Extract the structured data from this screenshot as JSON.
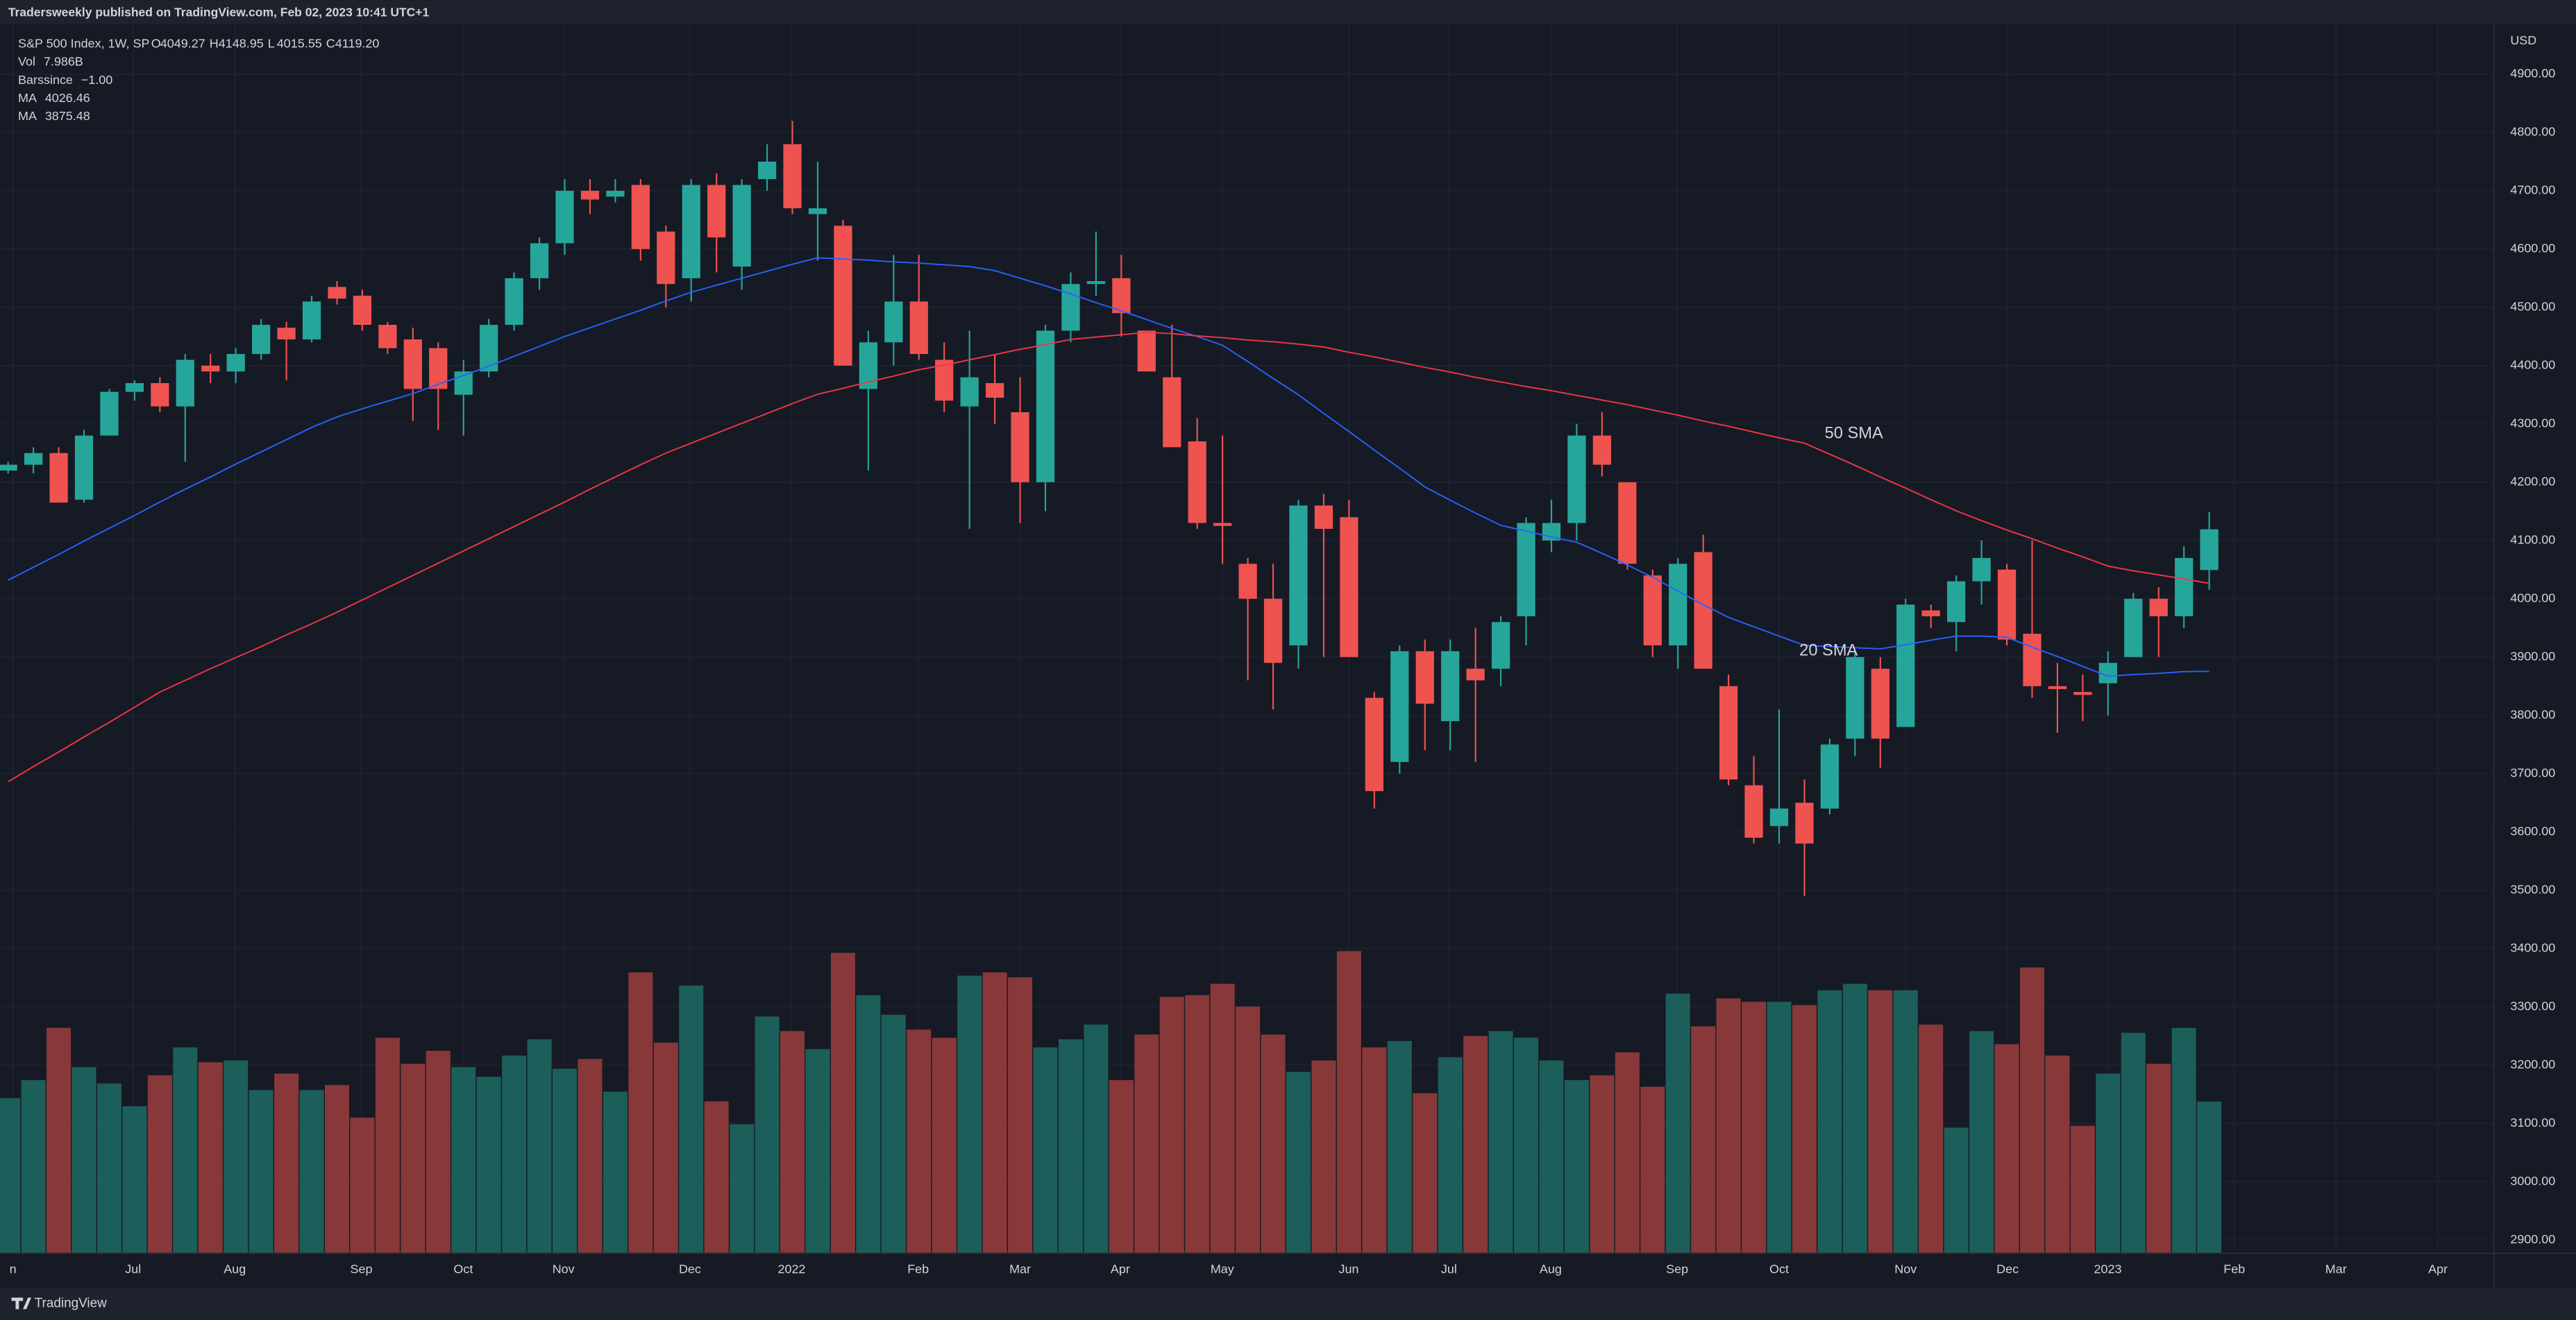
{
  "header": {
    "publisher": "Tradersweekly published on TradingView.com, Feb 02, 2023 10:41 UTC+1"
  },
  "footer": {
    "brand": "TradingView"
  },
  "chart_data": {
    "type": "candlestick",
    "legend": {
      "symbol": "S&P 500 Index, 1W, SP",
      "ohlc": [
        [
          "O",
          "4049.27"
        ],
        [
          "H",
          "4148.95"
        ],
        [
          "L",
          "4015.55"
        ],
        [
          "C",
          "4119.20"
        ]
      ],
      "indicators": [
        [
          "Vol",
          "7.986B",
          "#26a69a"
        ],
        [
          "Barssince",
          "−1.00",
          "#5b9cf6"
        ],
        [
          "MA",
          "4026.46",
          "#f23645"
        ],
        [
          "MA",
          "3875.48",
          "#2962ff"
        ]
      ]
    },
    "currency": "USD",
    "up_color": "#26a69a",
    "down_color": "#ef5350",
    "vol_up_color": "#1c5e5a",
    "vol_down_color": "#883838",
    "xlim": [
      -0.32,
      98.25
    ],
    "xticks": [
      {
        "value": 0.19,
        "label": "n"
      },
      {
        "value": 4.94,
        "label": "Jul"
      },
      {
        "value": 8.96,
        "label": "Aug"
      },
      {
        "value": 13.96,
        "label": "Sep"
      },
      {
        "value": 17.99,
        "label": "Oct"
      },
      {
        "value": 21.95,
        "label": "Nov"
      },
      {
        "value": 26.95,
        "label": "Dec"
      },
      {
        "value": 30.97,
        "label": "2022"
      },
      {
        "value": 35.97,
        "label": "Feb"
      },
      {
        "value": 40,
        "label": "Mar"
      },
      {
        "value": 43.96,
        "label": "Apr"
      },
      {
        "value": 47.99,
        "label": "May"
      },
      {
        "value": 52.99,
        "label": "Jun"
      },
      {
        "value": 56.95,
        "label": "Jul"
      },
      {
        "value": 60.97,
        "label": "Aug"
      },
      {
        "value": 65.97,
        "label": "Sep"
      },
      {
        "value": 70,
        "label": "Oct"
      },
      {
        "value": 75,
        "label": "Nov"
      },
      {
        "value": 79.03,
        "label": "Dec"
      },
      {
        "value": 82.99,
        "label": "2023"
      },
      {
        "value": 87.99,
        "label": "Feb"
      },
      {
        "value": 92.01,
        "label": "Mar"
      },
      {
        "value": 96.04,
        "label": "Apr"
      }
    ],
    "ylim": [
      2877,
      4985
    ],
    "yticks": [
      {
        "value": 2900,
        "label": "2900.00"
      },
      {
        "value": 3000,
        "label": "3000.00"
      },
      {
        "value": 3100,
        "label": "3100.00"
      },
      {
        "value": 3200,
        "label": "3200.00"
      },
      {
        "value": 3300,
        "label": "3300.00"
      },
      {
        "value": 3400,
        "label": "3400.00"
      },
      {
        "value": 3500,
        "label": "3500.00"
      },
      {
        "value": 3600,
        "label": "3600.00"
      },
      {
        "value": 3700,
        "label": "3700.00"
      },
      {
        "value": 3800,
        "label": "3800.00"
      },
      {
        "value": 3900,
        "label": "3900.00"
      },
      {
        "value": 4000,
        "label": "4000.00"
      },
      {
        "value": 4100,
        "label": "4100.00"
      },
      {
        "value": 4200,
        "label": "4200.00"
      },
      {
        "value": 4300,
        "label": "4300.00"
      },
      {
        "value": 4400,
        "label": "4400.00"
      },
      {
        "value": 4500,
        "label": "4500.00"
      },
      {
        "value": 4600,
        "label": "4600.00"
      },
      {
        "value": 4700,
        "label": "4700.00"
      },
      {
        "value": 4800,
        "label": "4800.00"
      },
      {
        "value": 4900,
        "label": "4900.00"
      }
    ],
    "grid": true,
    "open": [
      4220,
      4230,
      4250,
      4170,
      4280,
      4355,
      4370,
      4330,
      4400,
      4390,
      4420,
      4465,
      4445,
      4535,
      4520,
      4470,
      4445,
      4430,
      4350,
      4390,
      4470,
      4550,
      4610,
      4700,
      4690,
      4710,
      4630,
      4550,
      4710,
      4570,
      4720,
      4780,
      4660,
      4640,
      4360,
      4440,
      4510,
      4410,
      4330,
      4370,
      4320,
      4200,
      4460,
      4540,
      4550,
      4460,
      4380,
      4270,
      4130,
      4060,
      4000,
      3920,
      4160,
      4140,
      3830,
      3720,
      3910,
      3790,
      3880,
      3880,
      3970,
      4100,
      4130,
      4280,
      4200,
      4040,
      3920,
      4080,
      3850,
      3680,
      3610,
      3650,
      3640,
      3760,
      3880,
      3780,
      3980,
      3960,
      4030,
      4050,
      3940,
      3850,
      3840,
      3855,
      3900,
      4000,
      3970,
      4049.27
    ],
    "high": [
      4235,
      4260,
      4260,
      4290,
      4360,
      4375,
      4380,
      4420,
      4420,
      4430,
      4480,
      4475,
      4520,
      4545,
      4530,
      4475,
      4465,
      4440,
      4410,
      4480,
      4560,
      4620,
      4720,
      4720,
      4720,
      4720,
      4640,
      4720,
      4730,
      4720,
      4780,
      4820,
      4750,
      4650,
      4460,
      4590,
      4590,
      4440,
      4460,
      4420,
      4380,
      4470,
      4560,
      4630,
      4590,
      4460,
      4470,
      4310,
      4280,
      4070,
      4060,
      4170,
      4180,
      4170,
      3840,
      3920,
      3930,
      3930,
      3950,
      3970,
      4140,
      4170,
      4300,
      4320,
      4200,
      4050,
      4070,
      4110,
      3870,
      3730,
      3810,
      3690,
      3760,
      3910,
      3900,
      4000,
      3990,
      4040,
      4100,
      4060,
      4100,
      3890,
      3870,
      3910,
      4010,
      4020,
      4090,
      4148.95
    ],
    "low": [
      4215,
      4215,
      4165,
      4165,
      4280,
      4340,
      4320,
      4235,
      4370,
      4370,
      4410,
      4375,
      4440,
      4505,
      4460,
      4420,
      4305,
      4290,
      4280,
      4380,
      4460,
      4530,
      4590,
      4660,
      4680,
      4580,
      4500,
      4510,
      4560,
      4530,
      4700,
      4660,
      4580,
      4400,
      4220,
      4400,
      4410,
      4320,
      4120,
      4300,
      4130,
      4150,
      4440,
      4520,
      4450,
      4390,
      4260,
      4120,
      4060,
      3860,
      3810,
      3880,
      3900,
      3900,
      3640,
      3700,
      3740,
      3740,
      3720,
      3850,
      3920,
      4080,
      4100,
      4210,
      4050,
      3900,
      3880,
      3880,
      3680,
      3580,
      3580,
      3490,
      3630,
      3730,
      3710,
      3780,
      3950,
      3910,
      3990,
      3920,
      3830,
      3770,
      3790,
      3800,
      3900,
      3900,
      3950,
      4015.55
    ],
    "close": [
      4230,
      4250,
      4165,
      4280,
      4355,
      4370,
      4330,
      4410,
      4390,
      4420,
      4470,
      4445,
      4510,
      4515,
      4470,
      4430,
      4360,
      4360,
      4390,
      4470,
      4550,
      4610,
      4700,
      4685,
      4700,
      4600,
      4540,
      4710,
      4620,
      4710,
      4750,
      4670,
      4670,
      4400,
      4440,
      4510,
      4420,
      4340,
      4380,
      4345,
      4200,
      4460,
      4540,
      4545,
      4490,
      4390,
      4260,
      4130,
      4125,
      4000,
      3890,
      4160,
      4120,
      3900,
      3670,
      3910,
      3820,
      3910,
      3860,
      3960,
      4130,
      4130,
      4280,
      4230,
      4060,
      3920,
      4060,
      3880,
      3690,
      3590,
      3640,
      3580,
      3750,
      3900,
      3760,
      3990,
      3970,
      4030,
      4070,
      3930,
      3850,
      3845,
      3835,
      3890,
      4000,
      3970,
      4070,
      4119.2
    ],
    "volume_lim": [
      0,
      16
    ],
    "volume": [
      8.17,
      9.12,
      11.87,
      9.8,
      8.94,
      7.74,
      9.37,
      10.84,
      10.06,
      10.15,
      8.6,
      9.46,
      8.6,
      8.86,
      7.14,
      11.35,
      9.98,
      10.66,
      9.8,
      9.29,
      10.41,
      11.27,
      9.72,
      10.23,
      8.51,
      14.79,
      11.09,
      14.1,
      8.0,
      6.79,
      12.47,
      11.7,
      10.75,
      15.82,
      13.59,
      12.56,
      11.78,
      11.35,
      14.62,
      14.79,
      14.53,
      10.84,
      11.27,
      12.04,
      9.12,
      11.52,
      13.5,
      13.59,
      14.19,
      12.99,
      11.52,
      9.55,
      10.15,
      15.91,
      10.84,
      11.18,
      8.43,
      10.32,
      11.44,
      11.7,
      11.35,
      10.15,
      9.12,
      9.37,
      10.58,
      8.77,
      13.67,
      11.95,
      13.42,
      13.24,
      13.24,
      13.07,
      13.85,
      14.19,
      13.85,
      13.85,
      12.04,
      6.62,
      11.7,
      11.01,
      15.05,
      10.41,
      6.71,
      9.46,
      11.61,
      9.98,
      11.87,
      7.986
    ],
    "series": [
      {
        "name": "20 SMA",
        "color": "#2962ff",
        "label_at": [
          70.8,
          3910
        ],
        "values": [
          4032,
          4054,
          4076,
          4099,
          4121,
          4143,
          4166,
          4188,
          4209,
          4231,
          4252,
          4273,
          4294,
          4312,
          4326,
          4339,
          4352,
          4368,
          4383,
          4399,
          4416,
          4433,
          4450,
          4465,
          4480,
          4495,
          4511,
          4526,
          4538,
          4550,
          4562,
          4574,
          4585,
          4583,
          4581,
          4578,
          4576,
          4573,
          4570,
          4563,
          4550,
          4537,
          4523,
          4508,
          4494,
          4479,
          4464,
          4450,
          4435,
          4407,
          4378,
          4350,
          4318,
          4287,
          4255,
          4224,
          4192,
          4169,
          4147,
          4126,
          4116,
          4106,
          4097,
          4078,
          4058,
          4037,
          4013,
          3990,
          3968,
          3952,
          3936,
          3920,
          3918,
          3916,
          3914,
          3921,
          3929,
          3936,
          3936,
          3934,
          3917,
          3901,
          3884,
          3867,
          3870,
          3872,
          3875,
          3875.48
        ]
      },
      {
        "name": "50 SMA",
        "color": "#f23645",
        "label_at": [
          71.8,
          4283
        ],
        "values": [
          3686,
          3712,
          3737,
          3763,
          3788,
          3814,
          3840,
          3860,
          3880,
          3899,
          3918,
          3938,
          3957,
          3977,
          3998,
          4019,
          4040,
          4061,
          4082,
          4103,
          4124,
          4145,
          4166,
          4188,
          4209,
          4230,
          4250,
          4267,
          4284,
          4301,
          4318,
          4335,
          4351,
          4361,
          4372,
          4382,
          4393,
          4401,
          4410,
          4419,
          4428,
          4436,
          4445,
          4449,
          4453,
          4457,
          4455,
          4451,
          4448,
          4444,
          4441,
          4437,
          4432,
          4423,
          4415,
          4406,
          4397,
          4389,
          4380,
          4372,
          4364,
          4357,
          4349,
          4341,
          4333,
          4324,
          4315,
          4305,
          4296,
          4286,
          4276,
          4267,
          4248,
          4229,
          4209,
          4190,
          4170,
          4151,
          4134,
          4118,
          4103,
          4087,
          4072,
          4056,
          4048,
          4041,
          4034,
          4026.46
        ]
      }
    ]
  }
}
